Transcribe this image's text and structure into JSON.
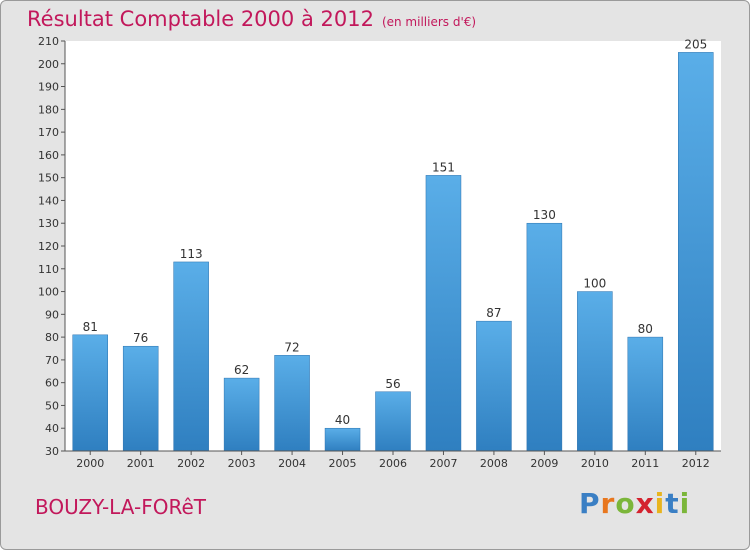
{
  "chart_data": {
    "type": "bar",
    "title": "Résultat Comptable 2000 à 2012",
    "subtitle": "(en milliers d'€)",
    "categories": [
      "2000",
      "2001",
      "2002",
      "2003",
      "2004",
      "2005",
      "2006",
      "2007",
      "2008",
      "2009",
      "2010",
      "2011",
      "2012"
    ],
    "values": [
      81,
      76,
      113,
      62,
      72,
      40,
      56,
      151,
      87,
      130,
      100,
      80,
      205
    ],
    "ylim": [
      30,
      210
    ],
    "ytick_step": 10,
    "xlabel": "",
    "ylabel": "",
    "grid": false,
    "legend": "none"
  },
  "footer": {
    "commune": "BOUZY-LA-FORêT",
    "brand": {
      "letters": [
        "P",
        "r",
        "o",
        "x",
        "i",
        "t",
        "i"
      ],
      "text": "Proxiti"
    }
  },
  "colors": {
    "title": "#c2185b",
    "bar_top": "#5aaee8",
    "bar_bottom": "#2f7fc0",
    "plot_bg": "#ffffff",
    "background": "#e4e4e4",
    "brand": [
      "#3a7fc4",
      "#e8771e",
      "#7bb63a",
      "#d4222e",
      "#e8b41e",
      "#3a7fc4",
      "#7bb63a"
    ]
  }
}
